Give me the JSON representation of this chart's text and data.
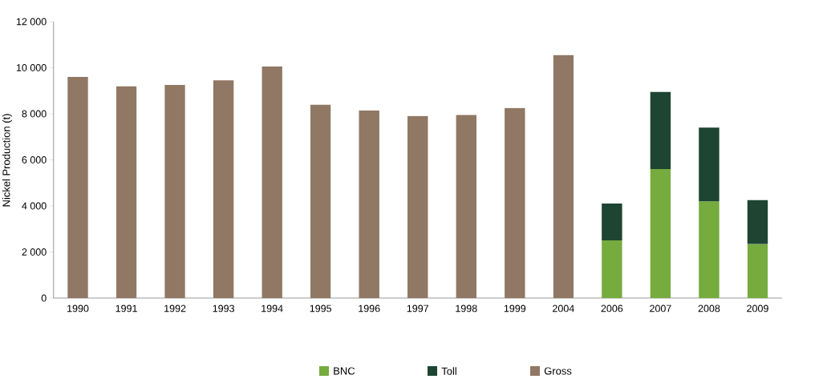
{
  "chart_data": {
    "type": "bar",
    "stacked": true,
    "ylabel": "Nickel Production (t)",
    "categories": [
      "1990",
      "1991",
      "1992",
      "1993",
      "1994",
      "1995",
      "1996",
      "1997",
      "1998",
      "1999",
      "2004",
      "2006",
      "2007",
      "2008",
      "2009"
    ],
    "series": [
      {
        "name": "BNC",
        "color": "#76ab3e",
        "values": [
          null,
          null,
          null,
          null,
          null,
          null,
          null,
          null,
          null,
          null,
          null,
          2500,
          5600,
          4200,
          2350
        ]
      },
      {
        "name": "Toll",
        "color": "#1d4532",
        "values": [
          null,
          null,
          null,
          null,
          null,
          null,
          null,
          null,
          null,
          null,
          null,
          1600,
          3350,
          3200,
          1900
        ]
      },
      {
        "name": "Gross",
        "color": "#917864",
        "values": [
          9600,
          9200,
          9250,
          9450,
          10050,
          8400,
          8150,
          7900,
          7950,
          8250,
          10550,
          null,
          null,
          null,
          null
        ]
      }
    ],
    "ylim": [
      0,
      12000
    ],
    "yticks": [
      0,
      {
        "value": 2000,
        "label": "2 000"
      },
      {
        "value": 4000,
        "label": "4 000"
      },
      {
        "value": 6000,
        "label": "6 000"
      },
      {
        "value": 8000,
        "label": "8 000"
      },
      {
        "value": 10000,
        "label": "10 000"
      },
      {
        "value": 12000,
        "label": "12 000"
      }
    ],
    "legend": "bottom"
  }
}
